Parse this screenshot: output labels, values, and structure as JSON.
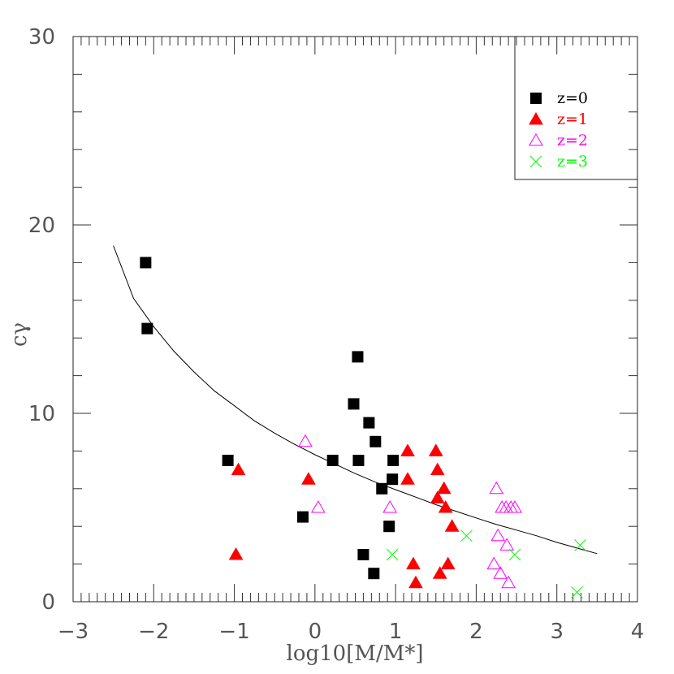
{
  "chart_data": {
    "type": "scatter",
    "xlabel": "log10[M/M*]",
    "ylabel": "cγ",
    "xlim": [
      -3,
      4
    ],
    "ylim": [
      0,
      30
    ],
    "x_ticks": [
      "−3",
      "−2",
      "−1",
      "0",
      "1",
      "2",
      "3",
      "4"
    ],
    "y_ticks": [
      "0",
      "10",
      "20",
      "30"
    ],
    "grid": false,
    "legend_position": "top-right",
    "series": [
      {
        "name": "z=0",
        "marker": "filled-square",
        "color": "#000000",
        "points": [
          [
            -2.1,
            18.0
          ],
          [
            -2.08,
            14.5
          ],
          [
            -1.08,
            7.5
          ],
          [
            -0.15,
            4.5
          ],
          [
            0.22,
            7.5
          ],
          [
            0.48,
            10.5
          ],
          [
            0.53,
            13.0
          ],
          [
            0.54,
            7.5
          ],
          [
            0.6,
            2.5
          ],
          [
            0.67,
            9.5
          ],
          [
            0.73,
            1.5
          ],
          [
            0.75,
            8.5
          ],
          [
            0.83,
            6.0
          ],
          [
            0.92,
            4.0
          ],
          [
            0.96,
            6.5
          ],
          [
            0.97,
            7.5
          ]
        ]
      },
      {
        "name": "z=1",
        "marker": "filled-triangle",
        "color": "#ff0000",
        "points": [
          [
            -0.98,
            2.5
          ],
          [
            -0.95,
            7.0
          ],
          [
            -0.08,
            6.5
          ],
          [
            1.15,
            8.0
          ],
          [
            1.15,
            6.5
          ],
          [
            1.22,
            2.0
          ],
          [
            1.25,
            1.0
          ],
          [
            1.5,
            8.0
          ],
          [
            1.52,
            7.0
          ],
          [
            1.52,
            5.5
          ],
          [
            1.55,
            1.5
          ],
          [
            1.6,
            6.0
          ],
          [
            1.62,
            5.0
          ],
          [
            1.65,
            2.0
          ],
          [
            1.7,
            4.0
          ]
        ]
      },
      {
        "name": "z=2",
        "marker": "open-triangle",
        "color": "#ff00ff",
        "points": [
          [
            -0.12,
            8.5
          ],
          [
            0.04,
            5.0
          ],
          [
            0.93,
            5.0
          ],
          [
            2.22,
            2.0
          ],
          [
            2.25,
            6.0
          ],
          [
            2.27,
            3.5
          ],
          [
            2.3,
            1.5
          ],
          [
            2.32,
            5.0
          ],
          [
            2.37,
            5.0
          ],
          [
            2.38,
            3.0
          ],
          [
            2.4,
            1.0
          ],
          [
            2.43,
            5.0
          ],
          [
            2.48,
            5.0
          ]
        ]
      },
      {
        "name": "z=3",
        "marker": "cross",
        "color": "#00ff00",
        "points": [
          [
            0.96,
            2.5
          ],
          [
            1.88,
            3.5
          ],
          [
            2.48,
            2.5
          ],
          [
            3.25,
            0.5
          ],
          [
            3.29,
            3.0
          ]
        ]
      }
    ],
    "fit_curve": {
      "x": [
        -2.5,
        -2.25,
        -2.0,
        -1.75,
        -1.5,
        -1.25,
        -1.0,
        -0.75,
        -0.5,
        -0.25,
        0.0,
        0.25,
        0.5,
        0.75,
        1.0,
        1.25,
        1.5,
        1.75,
        2.0,
        2.25,
        2.5,
        2.75,
        3.0,
        3.25,
        3.5
      ],
      "y": [
        18.9,
        16.1,
        14.6,
        13.3,
        12.2,
        11.2,
        10.4,
        9.6,
        8.95,
        8.35,
        7.8,
        7.3,
        6.8,
        6.35,
        5.95,
        5.55,
        5.15,
        4.8,
        4.45,
        4.1,
        3.8,
        3.5,
        3.15,
        2.85,
        2.55
      ]
    }
  }
}
